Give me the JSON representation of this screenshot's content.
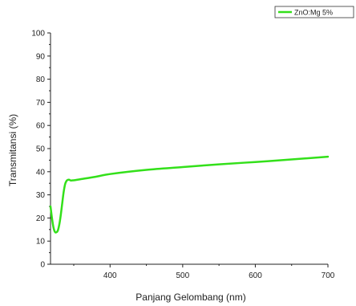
{
  "chart_data": {
    "type": "line",
    "xlabel": "Panjang Gelombang (nm)",
    "ylabel": "Transmitansi (%)",
    "xlim": [
      318,
      700
    ],
    "ylim": [
      0,
      100
    ],
    "x_ticks": [
      400,
      500,
      600,
      700
    ],
    "y_ticks": [
      0,
      10,
      20,
      30,
      40,
      50,
      60,
      70,
      80,
      90,
      100
    ],
    "legend_position": "top-right",
    "grid": false,
    "series": [
      {
        "name": "ZnO:Mg 5%",
        "color": "#33e01a",
        "x": [
          318,
          320,
          322,
          324,
          326,
          328,
          330,
          332,
          334,
          336,
          338,
          340,
          342,
          344,
          346,
          350,
          360,
          380,
          400,
          450,
          500,
          550,
          600,
          650,
          700
        ],
        "y": [
          25,
          20,
          16,
          14,
          13.8,
          14.5,
          17,
          21,
          26,
          31,
          34.5,
          36,
          36.5,
          36.5,
          36.2,
          36.3,
          36.8,
          37.8,
          39,
          40.8,
          42,
          43.2,
          44.2,
          45.3,
          46.5
        ]
      }
    ]
  }
}
